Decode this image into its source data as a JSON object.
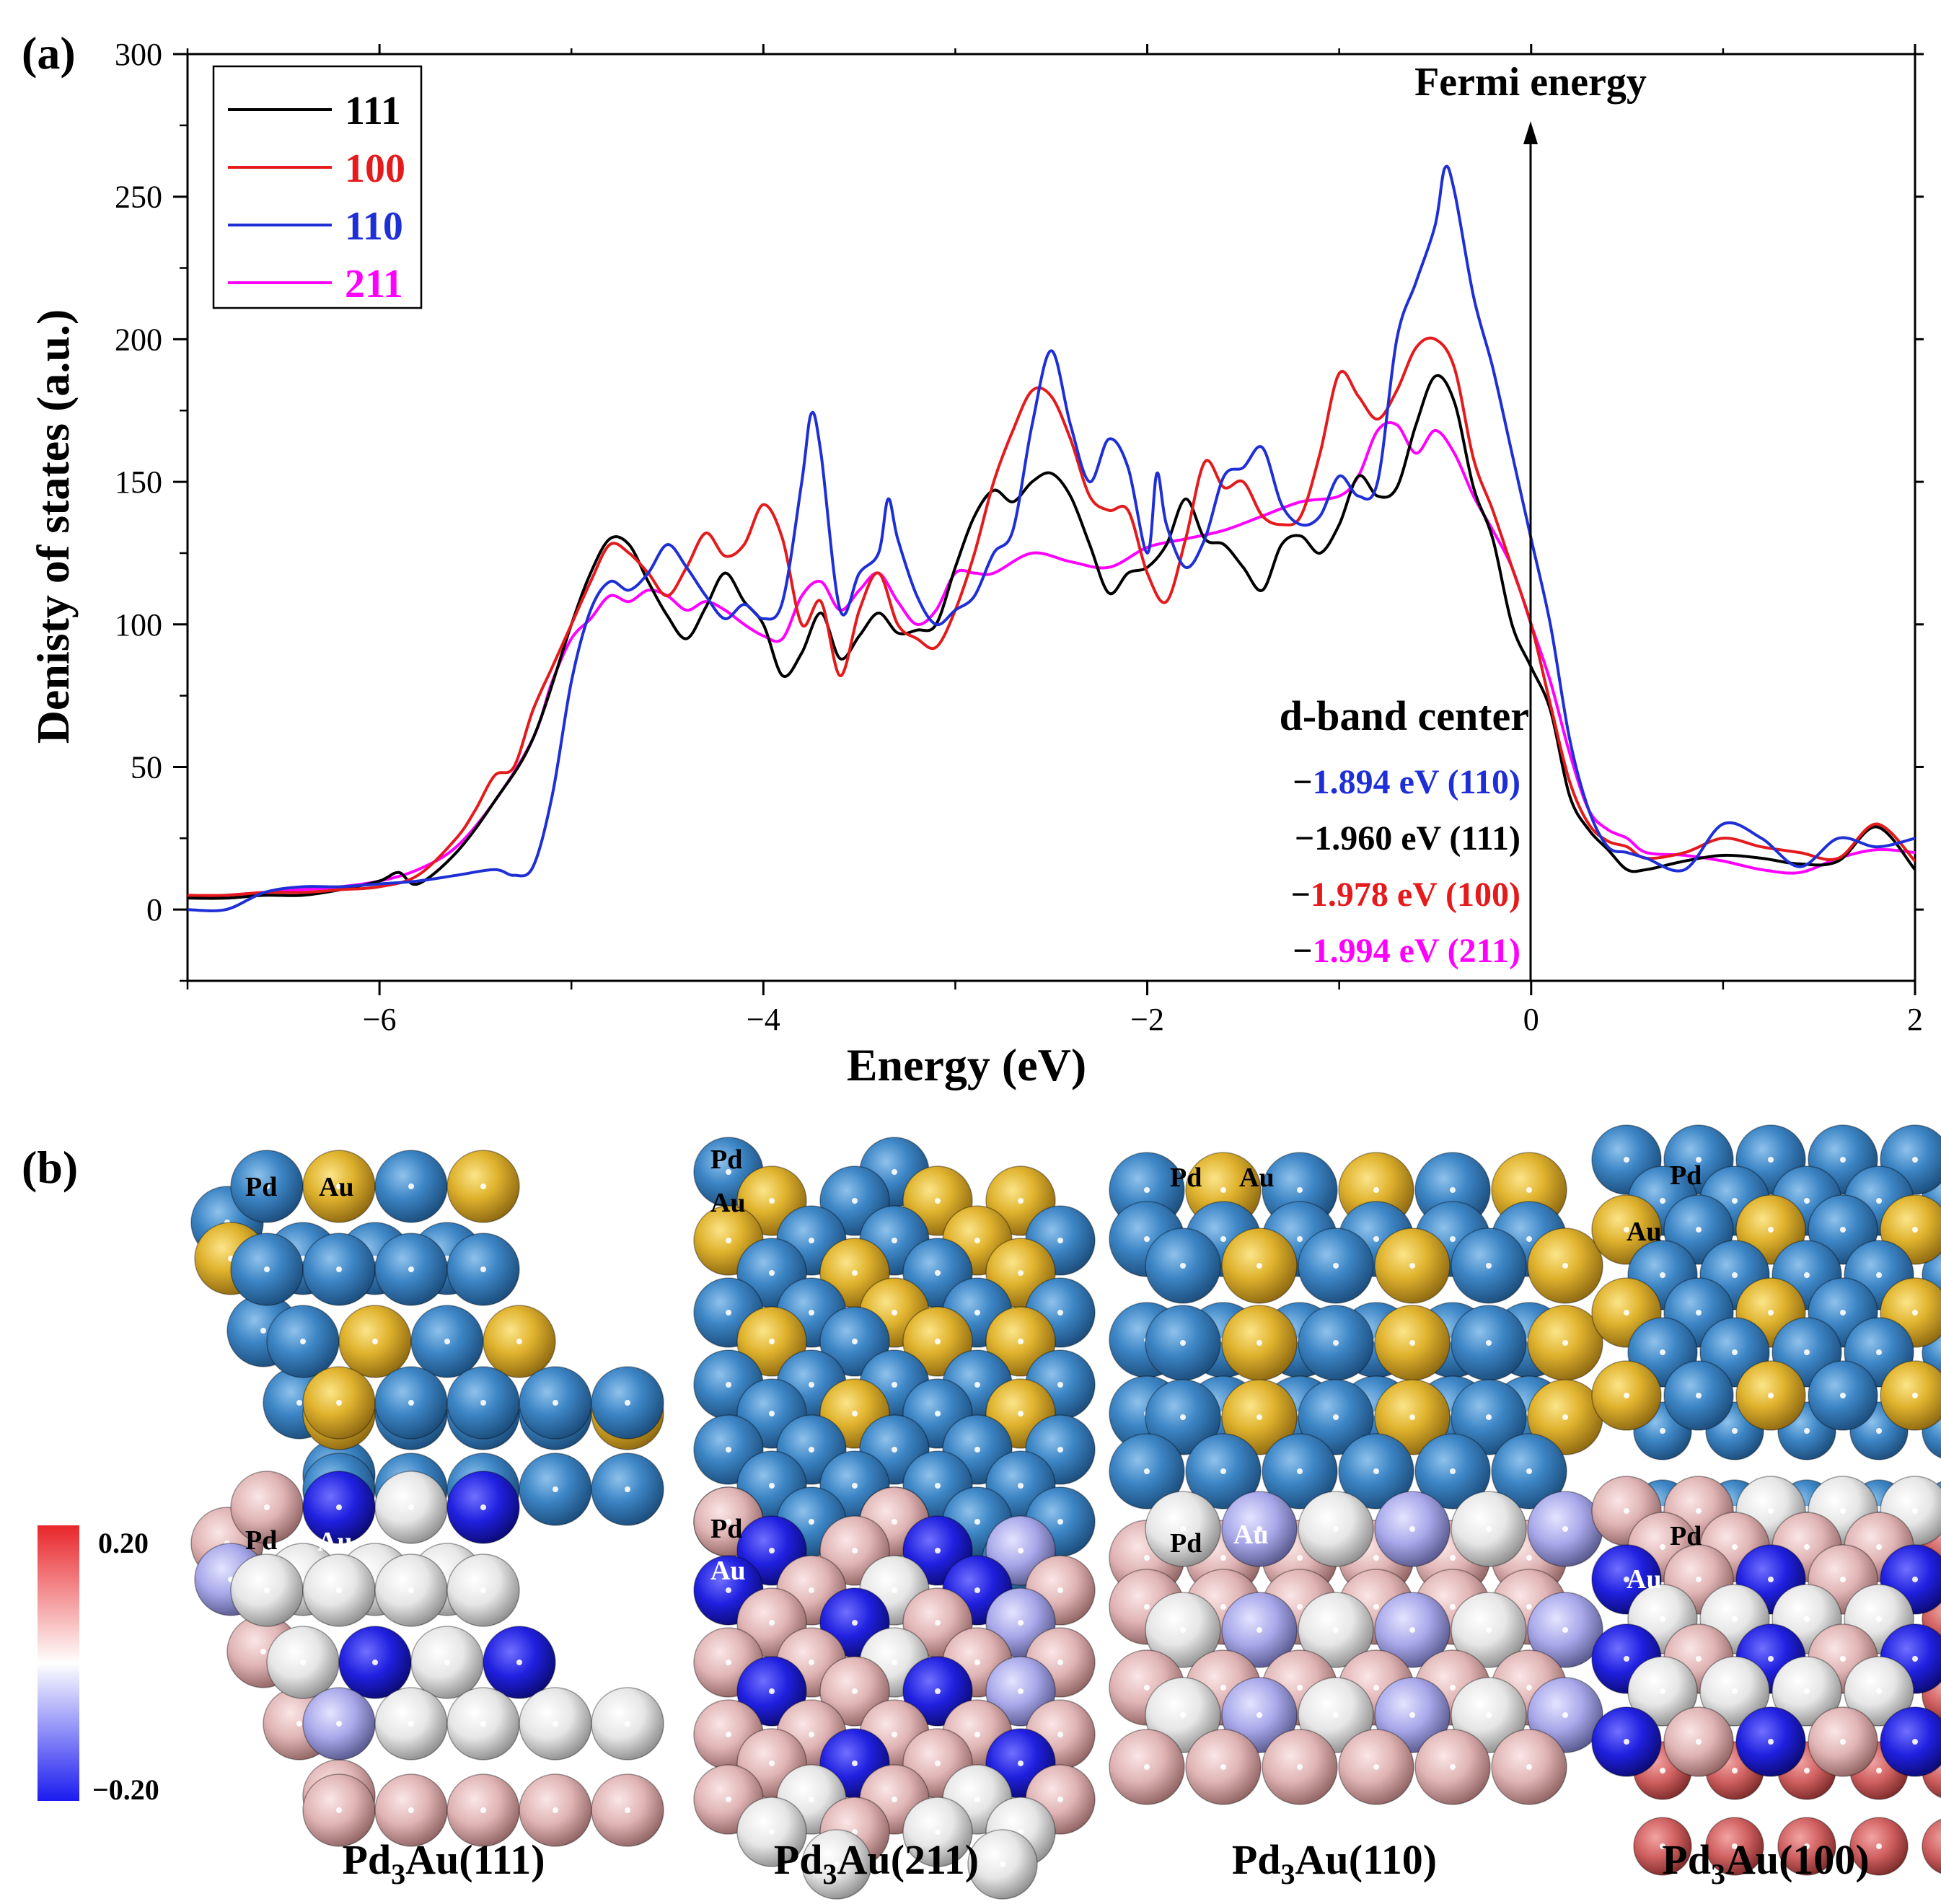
{
  "panel_labels": {
    "a": "(a)",
    "b": "(b)"
  },
  "chart_data": {
    "type": "line",
    "title": "",
    "xlabel": "Energy (eV)",
    "ylabel": "Denisty of states (a.u.)",
    "xlim": [
      -7,
      2
    ],
    "ylim": [
      -25,
      300
    ],
    "xticks": [
      -6,
      -4,
      -2,
      0,
      2
    ],
    "yticks": [
      0,
      50,
      100,
      150,
      200,
      250,
      300
    ],
    "xtick_labels": [
      "−6",
      "−4",
      "−2",
      "0",
      "2"
    ],
    "ytick_labels": [
      "0",
      "50",
      "100",
      "150",
      "200",
      "250",
      "300"
    ],
    "legend": {
      "position": "top-left"
    },
    "series": [
      {
        "name": "111",
        "color": "#000000",
        "x": [
          -7.0,
          -6.8,
          -6.6,
          -6.4,
          -6.2,
          -6.0,
          -5.9,
          -5.8,
          -5.6,
          -5.4,
          -5.2,
          -5.0,
          -4.9,
          -4.8,
          -4.7,
          -4.6,
          -4.5,
          -4.4,
          -4.3,
          -4.2,
          -4.1,
          -4.0,
          -3.9,
          -3.8,
          -3.7,
          -3.6,
          -3.5,
          -3.4,
          -3.3,
          -3.2,
          -3.1,
          -3.0,
          -2.9,
          -2.8,
          -2.7,
          -2.6,
          -2.5,
          -2.4,
          -2.3,
          -2.2,
          -2.1,
          -2.0,
          -1.9,
          -1.8,
          -1.7,
          -1.6,
          -1.5,
          -1.4,
          -1.3,
          -1.2,
          -1.1,
          -1.0,
          -0.9,
          -0.8,
          -0.7,
          -0.6,
          -0.5,
          -0.4,
          -0.3,
          -0.2,
          -0.1,
          0.0,
          0.1,
          0.2,
          0.3,
          0.4,
          0.5,
          0.6,
          0.8,
          1.0,
          1.2,
          1.4,
          1.6,
          1.8,
          2.0
        ],
        "y": [
          4,
          4,
          5,
          5,
          7,
          10,
          13,
          9,
          20,
          38,
          60,
          100,
          118,
          130,
          128,
          115,
          103,
          95,
          106,
          118,
          108,
          100,
          82,
          90,
          104,
          88,
          96,
          104,
          97,
          98,
          100,
          120,
          138,
          147,
          143,
          150,
          153,
          145,
          128,
          111,
          118,
          120,
          128,
          144,
          130,
          128,
          120,
          112,
          128,
          131,
          125,
          135,
          152,
          145,
          148,
          170,
          187,
          178,
          148,
          130,
          100,
          85,
          70,
          40,
          28,
          21,
          14,
          14,
          17,
          19,
          18,
          16,
          17,
          29,
          14
        ]
      },
      {
        "name": "100",
        "color": "#e41a1c",
        "x": [
          -7.0,
          -6.8,
          -6.6,
          -6.4,
          -6.2,
          -6.0,
          -5.8,
          -5.6,
          -5.5,
          -5.4,
          -5.3,
          -5.2,
          -5.1,
          -5.0,
          -4.9,
          -4.8,
          -4.7,
          -4.6,
          -4.5,
          -4.4,
          -4.3,
          -4.2,
          -4.1,
          -4.0,
          -3.9,
          -3.8,
          -3.7,
          -3.6,
          -3.5,
          -3.4,
          -3.3,
          -3.2,
          -3.1,
          -3.0,
          -2.9,
          -2.8,
          -2.7,
          -2.6,
          -2.5,
          -2.4,
          -2.3,
          -2.2,
          -2.1,
          -2.0,
          -1.9,
          -1.8,
          -1.7,
          -1.6,
          -1.5,
          -1.4,
          -1.3,
          -1.2,
          -1.1,
          -1.0,
          -0.9,
          -0.8,
          -0.7,
          -0.6,
          -0.5,
          -0.4,
          -0.3,
          -0.2,
          -0.1,
          0.0,
          0.1,
          0.2,
          0.3,
          0.4,
          0.5,
          0.6,
          0.8,
          1.0,
          1.2,
          1.4,
          1.6,
          1.8,
          2.0
        ],
        "y": [
          5,
          5,
          6,
          6,
          7,
          8,
          12,
          25,
          35,
          47,
          50,
          70,
          85,
          100,
          115,
          128,
          125,
          118,
          110,
          120,
          132,
          124,
          128,
          142,
          130,
          100,
          108,
          82,
          105,
          118,
          100,
          95,
          92,
          105,
          125,
          150,
          168,
          182,
          180,
          165,
          145,
          140,
          140,
          118,
          108,
          130,
          157,
          148,
          150,
          138,
          135,
          138,
          160,
          188,
          180,
          172,
          182,
          197,
          200,
          190,
          158,
          140,
          120,
          100,
          72,
          45,
          30,
          24,
          22,
          18,
          20,
          25,
          22,
          20,
          18,
          30,
          17
        ]
      },
      {
        "name": "110",
        "color": "#1f2fd6",
        "x": [
          -7.0,
          -6.8,
          -6.6,
          -6.4,
          -6.2,
          -6.0,
          -5.8,
          -5.6,
          -5.4,
          -5.3,
          -5.2,
          -5.1,
          -5.0,
          -4.9,
          -4.8,
          -4.7,
          -4.6,
          -4.5,
          -4.4,
          -4.3,
          -4.2,
          -4.1,
          -4.0,
          -3.9,
          -3.8,
          -3.75,
          -3.7,
          -3.6,
          -3.5,
          -3.4,
          -3.35,
          -3.3,
          -3.2,
          -3.1,
          -3.0,
          -2.9,
          -2.8,
          -2.7,
          -2.6,
          -2.5,
          -2.4,
          -2.3,
          -2.2,
          -2.1,
          -2.0,
          -1.95,
          -1.9,
          -1.8,
          -1.7,
          -1.6,
          -1.5,
          -1.4,
          -1.3,
          -1.2,
          -1.1,
          -1.0,
          -0.9,
          -0.8,
          -0.7,
          -0.6,
          -0.5,
          -0.45,
          -0.4,
          -0.3,
          -0.2,
          -0.1,
          0.0,
          0.1,
          0.2,
          0.3,
          0.4,
          0.5,
          0.6,
          0.8,
          1.0,
          1.2,
          1.4,
          1.6,
          1.8,
          2.0
        ],
        "y": [
          0,
          0,
          6,
          8,
          8,
          9,
          10,
          12,
          14,
          12,
          15,
          40,
          80,
          105,
          115,
          112,
          118,
          128,
          120,
          110,
          102,
          107,
          102,
          108,
          150,
          174,
          160,
          105,
          118,
          125,
          144,
          130,
          110,
          100,
          105,
          110,
          125,
          133,
          170,
          196,
          170,
          150,
          165,
          155,
          125,
          153,
          135,
          120,
          130,
          152,
          155,
          162,
          142,
          135,
          138,
          152,
          145,
          150,
          200,
          220,
          240,
          260,
          252,
          215,
          190,
          160,
          130,
          100,
          60,
          35,
          22,
          20,
          18,
          14,
          30,
          25,
          15,
          25,
          22,
          25
        ]
      },
      {
        "name": "211",
        "color": "#ff00ff",
        "x": [
          -7.0,
          -6.8,
          -6.6,
          -6.4,
          -6.2,
          -6.0,
          -5.8,
          -5.6,
          -5.4,
          -5.2,
          -5.1,
          -5.0,
          -4.9,
          -4.8,
          -4.7,
          -4.6,
          -4.5,
          -4.4,
          -4.3,
          -4.2,
          -4.1,
          -4.0,
          -3.9,
          -3.8,
          -3.7,
          -3.6,
          -3.5,
          -3.4,
          -3.3,
          -3.2,
          -3.1,
          -3.0,
          -2.9,
          -2.8,
          -2.6,
          -2.4,
          -2.2,
          -2.0,
          -1.8,
          -1.6,
          -1.4,
          -1.2,
          -1.0,
          -0.9,
          -0.8,
          -0.7,
          -0.6,
          -0.5,
          -0.4,
          -0.3,
          -0.2,
          -0.1,
          0.0,
          0.1,
          0.2,
          0.3,
          0.4,
          0.5,
          0.6,
          0.8,
          1.0,
          1.2,
          1.4,
          1.6,
          1.8,
          2.0
        ],
        "y": [
          4,
          5,
          6,
          7,
          8,
          10,
          14,
          22,
          38,
          60,
          80,
          95,
          102,
          110,
          108,
          112,
          110,
          105,
          108,
          105,
          100,
          96,
          95,
          110,
          115,
          105,
          112,
          118,
          108,
          100,
          105,
          118,
          118,
          118,
          125,
          122,
          120,
          127,
          130,
          133,
          138,
          143,
          145,
          152,
          168,
          170,
          160,
          168,
          160,
          145,
          133,
          120,
          100,
          80,
          55,
          35,
          28,
          25,
          20,
          19,
          17,
          14,
          13,
          18,
          21,
          20
        ]
      }
    ],
    "annotations": {
      "fermi_label": "Fermi energy",
      "fermi_x": 0,
      "dband_title": "d-band center",
      "dband_values": [
        {
          "prefix": "−",
          "value": "1.894 eV (110)",
          "color": "#1f2fd6"
        },
        {
          "prefix": "−",
          "value": "1.960 eV (111)",
          "color": "#000000"
        },
        {
          "prefix": "−",
          "value": "1.978 eV (100)",
          "color": "#e41a1c"
        },
        {
          "prefix": "−",
          "value": "1.994 eV (211)",
          "color": "#ff00ff"
        }
      ]
    }
  },
  "panel_b": {
    "atom_labels": {
      "pd": "Pd",
      "au": "Au"
    },
    "colorbar": {
      "max_label": "0.20",
      "min_label": "−0.20",
      "max_color": "#e8262a",
      "mid_color": "#ffffff",
      "min_color": "#1b1bf0"
    },
    "atom_colors": {
      "pd": "#3d86c6",
      "au": "#e0b32e"
    },
    "surfaces": [
      {
        "id": "111",
        "base": "Pd",
        "sub": "3",
        "rest": "Au(111)"
      },
      {
        "id": "211",
        "base": "Pd",
        "sub": "3",
        "rest": "Au(211)"
      },
      {
        "id": "110",
        "base": "Pd",
        "sub": "3",
        "rest": "Au(110)"
      },
      {
        "id": "100",
        "base": "Pd",
        "sub": "3",
        "rest": "Au(100)"
      }
    ]
  }
}
